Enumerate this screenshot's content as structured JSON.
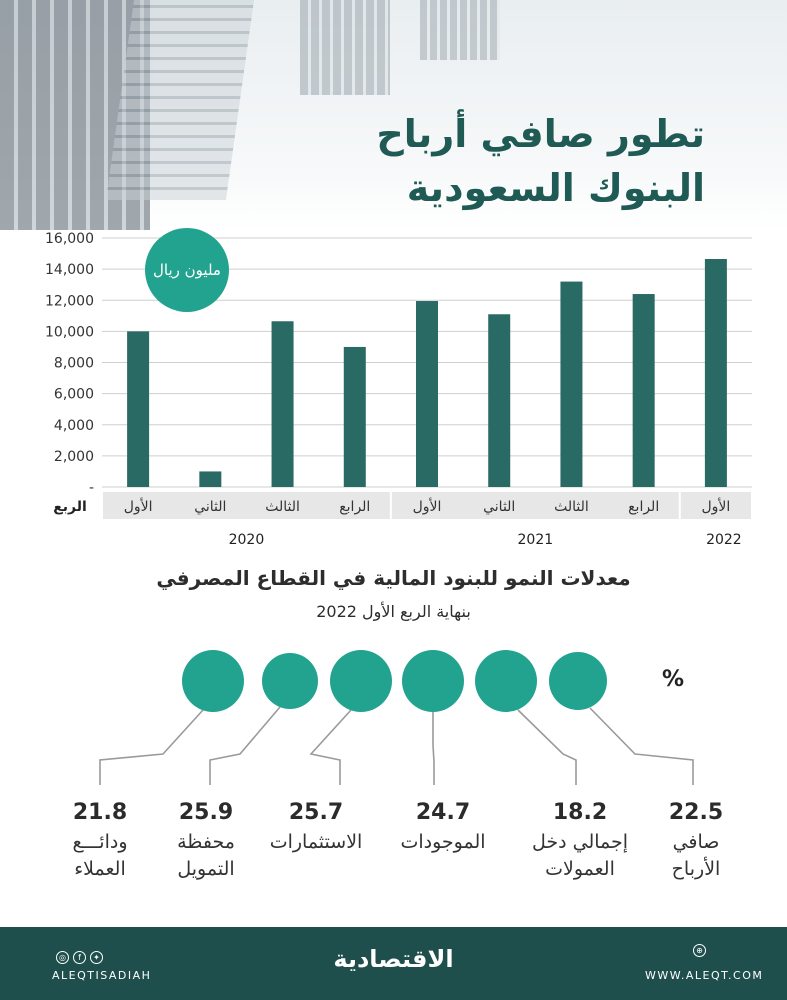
{
  "title": {
    "line1": "تطور صافي أرباح",
    "line2": "البنوك السعودية"
  },
  "chart_data": {
    "type": "bar",
    "unit_label": "مليون ريال",
    "x_axis_label": "الربع",
    "y_ticks": [
      "16,000",
      "14,000",
      "12,000",
      "10,000",
      "8,000",
      "6,000",
      "4,000",
      "2,000",
      "-"
    ],
    "ylim": [
      0,
      16000
    ],
    "bar_color": "#2a6a64",
    "unit_badge_color": "#22a38f",
    "categories": [
      "الأول",
      "الثاني",
      "الثالث",
      "الرابع",
      "الأول",
      "الثاني",
      "الثالث",
      "الرابع",
      "الأول"
    ],
    "years": [
      "2020",
      "2020",
      "2020",
      "2020",
      "2021",
      "2021",
      "2021",
      "2021",
      "2022"
    ],
    "year_groups": [
      {
        "year": "2020",
        "count": 4
      },
      {
        "year": "2021",
        "count": 4
      },
      {
        "year": "2022",
        "count": 1
      }
    ],
    "values": [
      10000,
      1000,
      10650,
      9000,
      11950,
      11100,
      13200,
      12400,
      14650
    ]
  },
  "growth": {
    "title": "معدلات النمو للبنود المالية في القطاع المصرفي",
    "subtitle": "بنهاية الربع الأول 2022",
    "unit": "%",
    "circle_color": "#22a38f",
    "items": [
      {
        "value": "21.8",
        "label_line1": "ودائـــع",
        "label_line2": "العملاء"
      },
      {
        "value": "25.9",
        "label_line1": "محفظة",
        "label_line2": "التمويل"
      },
      {
        "value": "25.7",
        "label_line1": "الاستثمارات",
        "label_line2": ""
      },
      {
        "value": "24.7",
        "label_line1": "الموجودات",
        "label_line2": ""
      },
      {
        "value": "18.2",
        "label_line1": "إجمالي دخل",
        "label_line2": "العمولات"
      },
      {
        "value": "22.5",
        "label_line1": "صافي",
        "label_line2": "الأرباح"
      }
    ]
  },
  "footer": {
    "brand": "الاقتصادية",
    "handle": "ALEQTISADIAH",
    "website": "WWW.ALEQT.COM",
    "social_icons": [
      "instagram-icon",
      "facebook-icon",
      "twitter-icon"
    ],
    "web_icon": "globe-icon"
  }
}
